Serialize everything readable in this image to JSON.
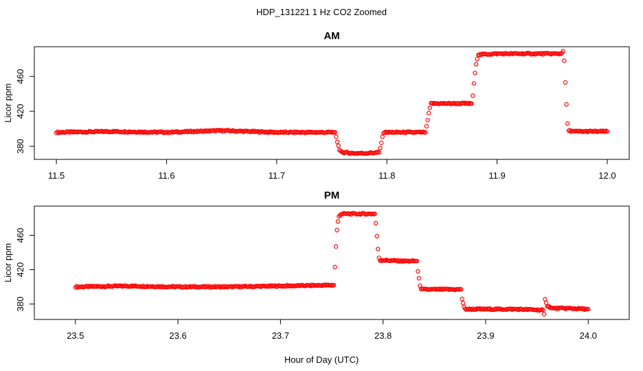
{
  "figure": {
    "title": "HDP_131221  1 Hz CO2 Zoomed",
    "xlabel": "Hour of Day (UTC)"
  },
  "chart_data": [
    {
      "type": "scatter",
      "title": "AM",
      "ylabel": "Licor ppm",
      "xlabel": "Hour of Day (UTC)",
      "xlim": [
        11.48,
        12.02
      ],
      "ylim": [
        365,
        494
      ],
      "xticks": [
        11.5,
        11.6,
        11.7,
        11.8,
        11.9,
        12.0
      ],
      "xtick_labels": [
        "11.5",
        "11.6",
        "11.7",
        "11.8",
        "11.9",
        "12.0"
      ],
      "yticks": [
        380,
        420,
        460
      ],
      "ytick_labels": [
        "380",
        "420",
        "460"
      ],
      "grid": false,
      "marker_color": "#ff0000",
      "series": [
        {
          "x": [
            11.5,
            11.55,
            11.6,
            11.65,
            11.7,
            11.753,
            11.754,
            11.755,
            11.756,
            11.757,
            11.76,
            11.77,
            11.78,
            11.793,
            11.794,
            11.795,
            11.796,
            11.797,
            11.8,
            11.82,
            11.835,
            11.836,
            11.837,
            11.838,
            11.839,
            11.84,
            11.86,
            11.877,
            11.878,
            11.879,
            11.88,
            11.881,
            11.882,
            11.883,
            11.9,
            11.93,
            11.958,
            11.96,
            11.961,
            11.962,
            11.963,
            11.964,
            11.965,
            11.97,
            12.0
          ],
          "y": [
            396,
            397,
            396,
            398,
            396,
            396,
            391,
            385,
            380,
            376,
            373,
            372,
            372,
            373,
            378,
            384,
            391,
            396,
            396,
            396,
            396,
            403,
            410,
            418,
            424,
            429,
            429,
            429,
            438,
            452,
            464,
            474,
            480,
            485,
            486,
            486,
            486,
            489,
            478,
            453,
            428,
            406,
            398,
            397,
            397
          ]
        }
      ]
    },
    {
      "type": "scatter",
      "title": "PM",
      "ylabel": "Licor ppm",
      "xlabel": "Hour of Day (UTC)",
      "xlim": [
        23.46,
        24.04
      ],
      "ylim": [
        362,
        494
      ],
      "xticks": [
        23.5,
        23.6,
        23.7,
        23.8,
        23.9,
        24.0
      ],
      "xtick_labels": [
        "23.5",
        "23.6",
        "23.7",
        "23.8",
        "23.9",
        "24.0"
      ],
      "yticks": [
        380,
        420,
        460
      ],
      "ytick_labels": [
        "380",
        "420",
        "460"
      ],
      "grid": false,
      "marker_color": "#ff0000",
      "series": [
        {
          "x": [
            23.5,
            23.55,
            23.6,
            23.65,
            23.7,
            23.752,
            23.753,
            23.754,
            23.755,
            23.756,
            23.757,
            23.758,
            23.76,
            23.77,
            23.78,
            23.792,
            23.793,
            23.794,
            23.795,
            23.796,
            23.797,
            23.8,
            23.82,
            23.833,
            23.834,
            23.835,
            23.836,
            23.837,
            23.838,
            23.85,
            23.876,
            23.877,
            23.878,
            23.879,
            23.88,
            23.9,
            23.93,
            23.956,
            23.957,
            23.958,
            23.959,
            23.96,
            23.965,
            23.98,
            24.0
          ],
          "y": [
            400,
            401,
            400,
            400,
            401,
            402,
            423,
            447,
            466,
            476,
            482,
            484,
            485,
            485,
            485,
            485,
            474,
            459,
            444,
            434,
            431,
            431,
            430,
            430,
            418,
            410,
            402,
            398,
            397,
            397,
            397,
            386,
            381,
            376,
            374,
            374,
            374,
            373,
            368,
            385,
            382,
            378,
            375,
            375,
            374
          ]
        }
      ]
    }
  ]
}
